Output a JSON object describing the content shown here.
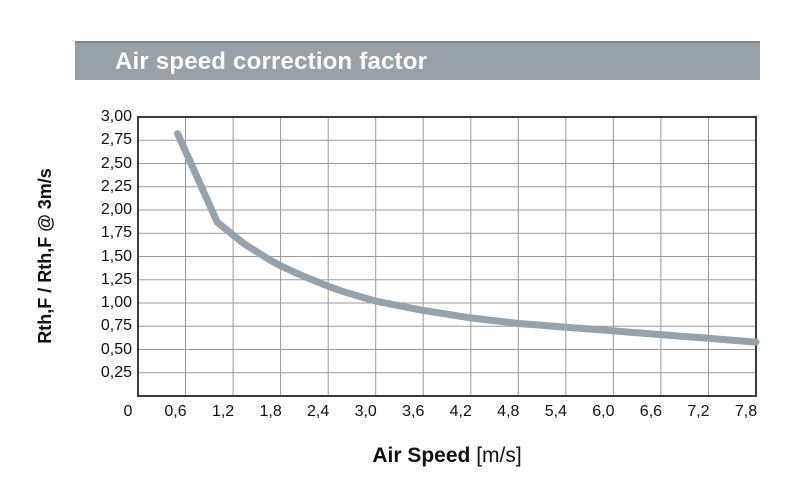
{
  "header": {
    "bar_bg": "#98a1a8",
    "bar_top_border": "#7d868e",
    "bar_text_color": "#ffffff"
  },
  "colors": {
    "grid": "#9a9a9a",
    "frame": "#3c3c3c",
    "text": "#111111",
    "background": "#ffffff"
  },
  "chart_data": {
    "type": "line",
    "title": "Air speed correction factor",
    "xlabel_bold": "Air Speed",
    "xlabel_unit": "[m/s]",
    "ylabel": "Rth,F / Rth,F @ 3m/s",
    "xlim": [
      0,
      7.8
    ],
    "ylim": [
      0,
      3.0
    ],
    "x_tick_step": 0.6,
    "y_tick_step": 0.25,
    "grid": true,
    "legend": "none",
    "x_tick_labels": [
      "0",
      "0,6",
      "1,2",
      "1,8",
      "2,4",
      "3,0",
      "3,6",
      "4,2",
      "4,8",
      "5,4",
      "6,0",
      "6,6",
      "7,2",
      "7,8"
    ],
    "y_tick_labels": [
      "3,00",
      "2,75",
      "2,50",
      "2,25",
      "2,00",
      "1,75",
      "1,50",
      "1,25",
      "1,00",
      "0,75",
      "0,50",
      "0,25"
    ],
    "series": [
      {
        "name": "air-speed-correction-factor",
        "color": "#94a2ac",
        "points": [
          [
            0.5,
            2.82
          ],
          [
            0.7,
            2.44
          ],
          [
            0.9,
            2.06
          ],
          [
            1.0,
            1.87
          ],
          [
            1.1,
            1.8
          ],
          [
            1.2,
            1.73
          ],
          [
            1.35,
            1.63
          ],
          [
            1.5,
            1.55
          ],
          [
            1.65,
            1.47
          ],
          [
            1.8,
            1.4
          ],
          [
            2.0,
            1.32
          ],
          [
            2.2,
            1.25
          ],
          [
            2.4,
            1.18
          ],
          [
            2.6,
            1.12
          ],
          [
            2.8,
            1.07
          ],
          [
            3.0,
            1.02
          ],
          [
            3.3,
            0.97
          ],
          [
            3.6,
            0.92
          ],
          [
            3.9,
            0.88
          ],
          [
            4.2,
            0.84
          ],
          [
            4.5,
            0.81
          ],
          [
            4.8,
            0.78
          ],
          [
            5.1,
            0.76
          ],
          [
            5.4,
            0.74
          ],
          [
            5.7,
            0.72
          ],
          [
            6.0,
            0.7
          ],
          [
            6.3,
            0.68
          ],
          [
            6.6,
            0.66
          ],
          [
            6.9,
            0.64
          ],
          [
            7.2,
            0.62
          ],
          [
            7.5,
            0.6
          ],
          [
            7.8,
            0.58
          ]
        ]
      }
    ]
  }
}
